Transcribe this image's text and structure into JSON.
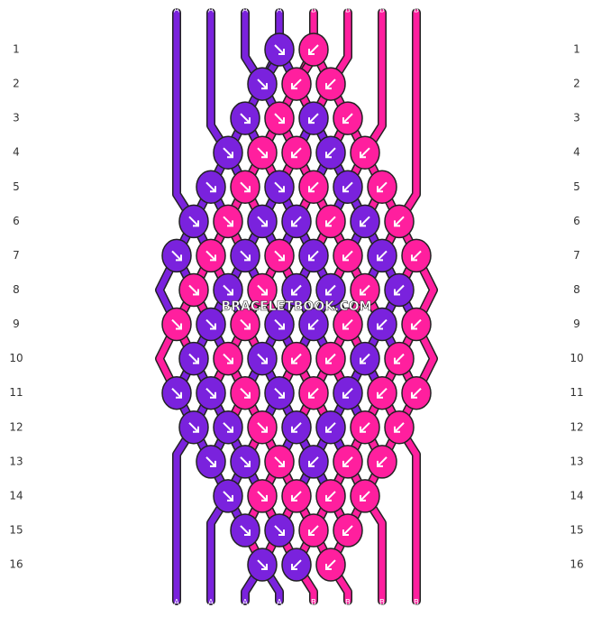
{
  "strands_top": [
    "A",
    "A",
    "A",
    "A",
    "A",
    "A",
    "A",
    "A",
    "B",
    "B",
    "B",
    "B",
    "B",
    "B",
    "B",
    "B"
  ],
  "strands_bottom": [
    "A",
    "A",
    "A",
    "A",
    "A",
    "A",
    "A",
    "A",
    "B",
    "B",
    "B",
    "B",
    "B",
    "B",
    "B",
    "B"
  ],
  "rows_left": [
    "1",
    "2",
    "3",
    "4",
    "5",
    "6",
    "7",
    "8",
    "9",
    "10",
    "11",
    "12",
    "13",
    "14",
    "15",
    "16"
  ],
  "rows_right": [
    "1",
    "2",
    "3",
    "4",
    "5",
    "6",
    "7",
    "8",
    "9",
    "10",
    "11",
    "12",
    "13",
    "14",
    "15",
    "16"
  ],
  "watermark": "BRACELETBOOK.COM"
}
